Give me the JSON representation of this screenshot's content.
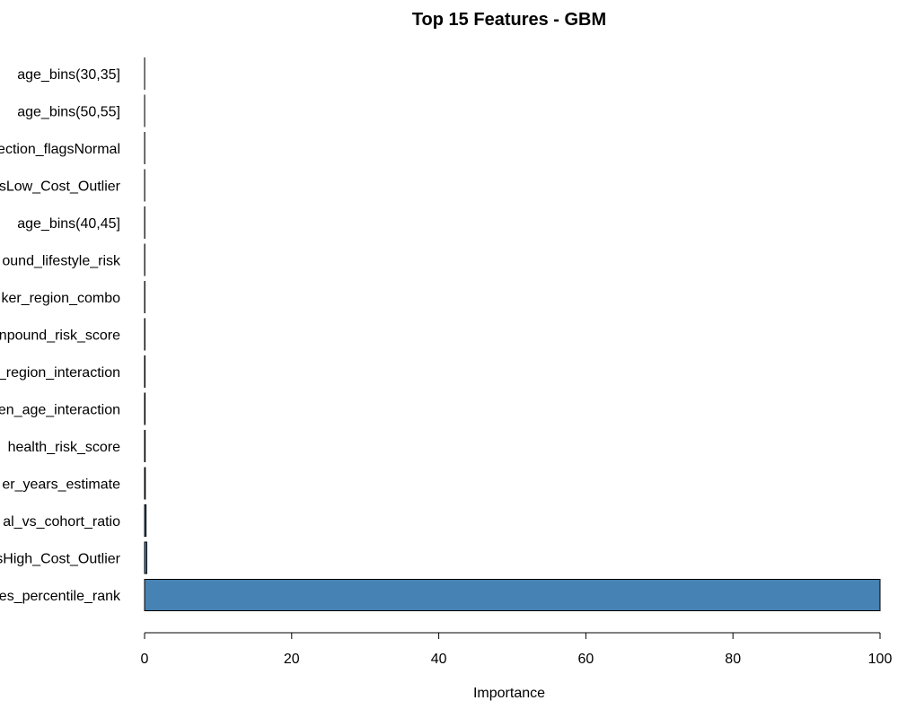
{
  "chart_data": {
    "type": "bar",
    "orientation": "horizontal",
    "title": "Top 15 Features - GBM",
    "xlabel": "Importance",
    "ylabel": "",
    "xlim": [
      0,
      100
    ],
    "x_ticks": [
      0,
      20,
      40,
      60,
      80,
      100
    ],
    "grid": false,
    "legend": "none",
    "bar_color": "#4682B4",
    "categories": [
      "age_bins(30,35]",
      "age_bins(50,55]",
      "ection_flagsNormal",
      "sLow_Cost_Outlier",
      "age_bins(40,45]",
      "ound_lifestyle_risk",
      "ker_region_combo",
      "npound_risk_score",
      "_region_interaction",
      "en_age_interaction",
      "health_risk_score",
      "er_years_estimate",
      "al_vs_cohort_ratio",
      "sHigh_Cost_Outlier",
      "es_percentile_rank"
    ],
    "values": [
      0.01,
      0.01,
      0.02,
      0.02,
      0.03,
      0.03,
      0.04,
      0.05,
      0.06,
      0.07,
      0.08,
      0.1,
      0.2,
      0.3,
      100
    ]
  }
}
